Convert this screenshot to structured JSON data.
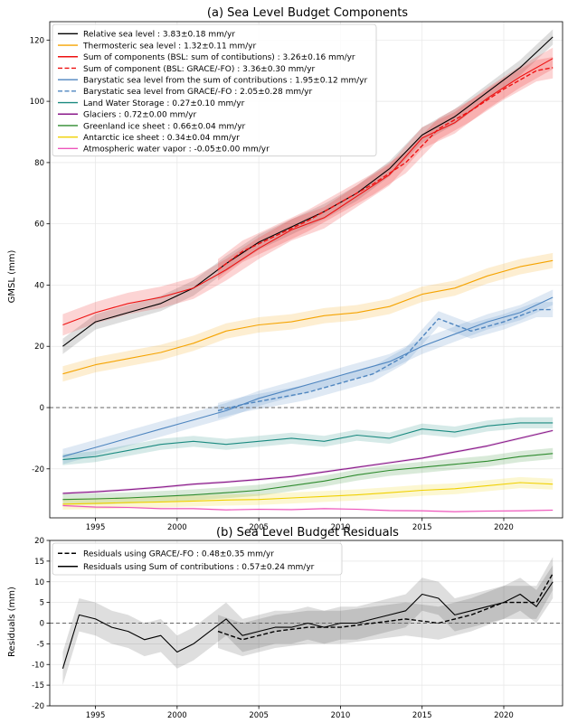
{
  "chart_data": [
    {
      "type": "line",
      "title": "(a) Sea Level Budget Components",
      "xlabel": "",
      "ylabel": "GMSL (mm)",
      "xlim": [
        1992.2,
        2023.6
      ],
      "ylim": [
        -36,
        126
      ],
      "xticks": [
        1995,
        2000,
        2005,
        2010,
        2015,
        2020
      ],
      "yticks": [
        -20,
        0,
        20,
        40,
        60,
        80,
        100,
        120
      ],
      "grid": true,
      "legend": "top-left",
      "zero_line": 0,
      "series": [
        {
          "name": "Relative sea level : 3.83±0.18 mm/yr",
          "color": "#000000",
          "style": "solid",
          "band": 2.5,
          "x": [
            1993,
            1995,
            1997,
            1999,
            2001,
            2003,
            2005,
            2007,
            2009,
            2011,
            2013,
            2015,
            2017,
            2019,
            2021,
            2023
          ],
          "y": [
            20,
            28,
            31,
            34,
            39,
            47,
            54,
            59,
            64,
            70,
            78,
            89,
            95,
            103,
            111,
            121
          ]
        },
        {
          "name": "Thermosteric sea level : 1.32±0.11 mm/yr",
          "color": "#f5a300",
          "style": "solid",
          "band": 2.5,
          "x": [
            1993,
            1995,
            1997,
            1999,
            2001,
            2003,
            2005,
            2007,
            2009,
            2011,
            2013,
            2015,
            2017,
            2019,
            2021,
            2023
          ],
          "y": [
            11,
            14,
            16,
            18,
            21,
            25,
            27,
            28,
            30,
            31,
            33,
            37,
            39,
            43,
            46,
            48
          ]
        },
        {
          "name": "Sum of components (BSL: sum of contibutions) : 3.26±0.16 mm/yr",
          "color": "#ee1111",
          "style": "solid",
          "band": 3.5,
          "x": [
            1993,
            1995,
            1997,
            1999,
            2001,
            2003,
            2005,
            2007,
            2009,
            2011,
            2013,
            2015,
            2017,
            2019,
            2021,
            2023
          ],
          "y": [
            27,
            31,
            34,
            36,
            39,
            45,
            52,
            58,
            62,
            69,
            76,
            88,
            93,
            101,
            108,
            114
          ]
        },
        {
          "name": "Sum of component (BSL: GRACE/-FO) : 3.36±0.30 mm/yr",
          "color": "#ee1111",
          "style": "dashed",
          "band": 3.5,
          "x": [
            2002.5,
            2004,
            2006,
            2008,
            2010,
            2012,
            2014,
            2016,
            2018,
            2020,
            2022,
            2023
          ],
          "y": [
            45,
            51,
            56,
            61,
            67,
            73,
            80,
            91,
            97,
            104,
            110,
            111
          ]
        },
        {
          "name": "Barystatic sea level from the sum of contributions : 1.95±0.12 mm/yr",
          "color": "#4f86c0",
          "style": "solid",
          "band": 2.5,
          "x": [
            1993,
            1995,
            1997,
            1999,
            2001,
            2003,
            2005,
            2007,
            2009,
            2011,
            2013,
            2015,
            2017,
            2019,
            2021,
            2023
          ],
          "y": [
            -16,
            -13,
            -10,
            -7,
            -4,
            -1,
            3,
            6,
            9,
            12,
            15,
            20,
            24,
            28,
            31,
            36
          ]
        },
        {
          "name": "Barystatic sea level from GRACE/-FO : 2.05±0.28 mm/yr",
          "color": "#4f86c0",
          "style": "dashed",
          "band": 2.5,
          "x": [
            2002.5,
            2004,
            2006,
            2008,
            2010,
            2012,
            2014,
            2016,
            2018,
            2020,
            2022,
            2023
          ],
          "y": [
            -1,
            1,
            3,
            5,
            8,
            11,
            17,
            29,
            25,
            28,
            32,
            32
          ]
        },
        {
          "name": "Land Water Storage : 0.27±0.10 mm/yr",
          "color": "#1a8a80",
          "style": "solid",
          "band": 1.8,
          "x": [
            1993,
            1995,
            1997,
            1999,
            2001,
            2003,
            2005,
            2007,
            2009,
            2011,
            2013,
            2015,
            2017,
            2019,
            2021,
            2023
          ],
          "y": [
            -17,
            -16,
            -14,
            -12,
            -11,
            -12,
            -11,
            -10,
            -11,
            -9,
            -10,
            -7,
            -8,
            -6,
            -5,
            -5
          ]
        },
        {
          "name": "Glaciers : 0.72±0.00 mm/yr",
          "color": "#8b1a8b",
          "style": "solid",
          "band": 0.4,
          "x": [
            1993,
            1995,
            1997,
            1999,
            2001,
            2003,
            2005,
            2007,
            2009,
            2011,
            2013,
            2015,
            2017,
            2019,
            2021,
            2023
          ],
          "y": [
            -28,
            -27.5,
            -26.8,
            -26,
            -25,
            -24.3,
            -23.5,
            -22.5,
            -21,
            -19.5,
            -18,
            -16.5,
            -14.5,
            -12.5,
            -10,
            -7.5
          ]
        },
        {
          "name": "Greenland ice sheet : 0.66±0.04 mm/yr",
          "color": "#2e8b2e",
          "style": "solid",
          "band": 1.8,
          "x": [
            1993,
            1995,
            1997,
            1999,
            2001,
            2003,
            2005,
            2007,
            2009,
            2011,
            2013,
            2015,
            2017,
            2019,
            2021,
            2023
          ],
          "y": [
            -30,
            -29.8,
            -29.5,
            -29,
            -28.5,
            -27.8,
            -27,
            -25.5,
            -24,
            -22,
            -20.5,
            -19.5,
            -18.5,
            -17.5,
            -16,
            -15
          ]
        },
        {
          "name": "Antarctic ice sheet : 0.34±0.04 mm/yr",
          "color": "#f0d000",
          "style": "solid",
          "band": 1.8,
          "x": [
            1993,
            1995,
            1997,
            1999,
            2001,
            2003,
            2005,
            2007,
            2009,
            2011,
            2013,
            2015,
            2017,
            2019,
            2021,
            2023
          ],
          "y": [
            -31.5,
            -31.3,
            -31,
            -30.8,
            -30.5,
            -30.2,
            -30,
            -29.5,
            -29,
            -28.5,
            -27.8,
            -27,
            -26.5,
            -25.5,
            -24.5,
            -25
          ]
        },
        {
          "name": "Atmospheric water vapor : -0.05±0.00 mm/yr",
          "color": "#ee55bb",
          "style": "solid",
          "band": 0.3,
          "x": [
            1993,
            1995,
            1997,
            1999,
            2001,
            2003,
            2005,
            2007,
            2009,
            2011,
            2013,
            2015,
            2017,
            2019,
            2021,
            2023
          ],
          "y": [
            -32,
            -32.5,
            -32.6,
            -33,
            -33,
            -33.4,
            -33.2,
            -33.3,
            -33,
            -33.2,
            -33.6,
            -33.7,
            -34,
            -33.8,
            -33.7,
            -33.5
          ]
        }
      ]
    },
    {
      "type": "line",
      "title": "(b) Sea Level Budget Residuals",
      "xlabel": "",
      "ylabel": "Residuals (mm)",
      "xlim": [
        1992.2,
        2023.6
      ],
      "ylim": [
        -20,
        20
      ],
      "xticks": [
        1995,
        2000,
        2005,
        2010,
        2015,
        2020
      ],
      "yticks": [
        -20,
        -15,
        -10,
        -5,
        0,
        5,
        10,
        15,
        20
      ],
      "grid": true,
      "legend": "top-left",
      "zero_line": 0,
      "series": [
        {
          "name": "Residuals using GRACE/-FO : 0.48±0.35 mm/yr",
          "color": "#000000",
          "style": "dashed",
          "band": 4,
          "x": [
            2002.5,
            2004,
            2006,
            2008,
            2010,
            2012,
            2014,
            2016,
            2018,
            2020,
            2022,
            2023
          ],
          "y": [
            -2,
            -4,
            -2,
            -1,
            -1,
            0,
            1,
            0,
            2,
            5,
            5,
            12
          ]
        },
        {
          "name": "Residuals using Sum of contributions : 0.57±0.24 mm/yr",
          "color": "#000000",
          "style": "solid",
          "band": 4,
          "x": [
            1993,
            1994,
            1995,
            1996,
            1997,
            1998,
            1999,
            2000,
            2001,
            2002,
            2003,
            2004,
            2005,
            2006,
            2007,
            2008,
            2009,
            2010,
            2011,
            2012,
            2013,
            2014,
            2015,
            2016,
            2017,
            2018,
            2019,
            2020,
            2021,
            2022,
            2023
          ],
          "y": [
            -11,
            2,
            1,
            -1,
            -2,
            -4,
            -3,
            -7,
            -5,
            -2,
            1,
            -3,
            -2,
            -1,
            -1,
            0,
            -1,
            0,
            0,
            1,
            2,
            3,
            7,
            6,
            2,
            3,
            4,
            5,
            7,
            4,
            10
          ]
        }
      ]
    }
  ]
}
